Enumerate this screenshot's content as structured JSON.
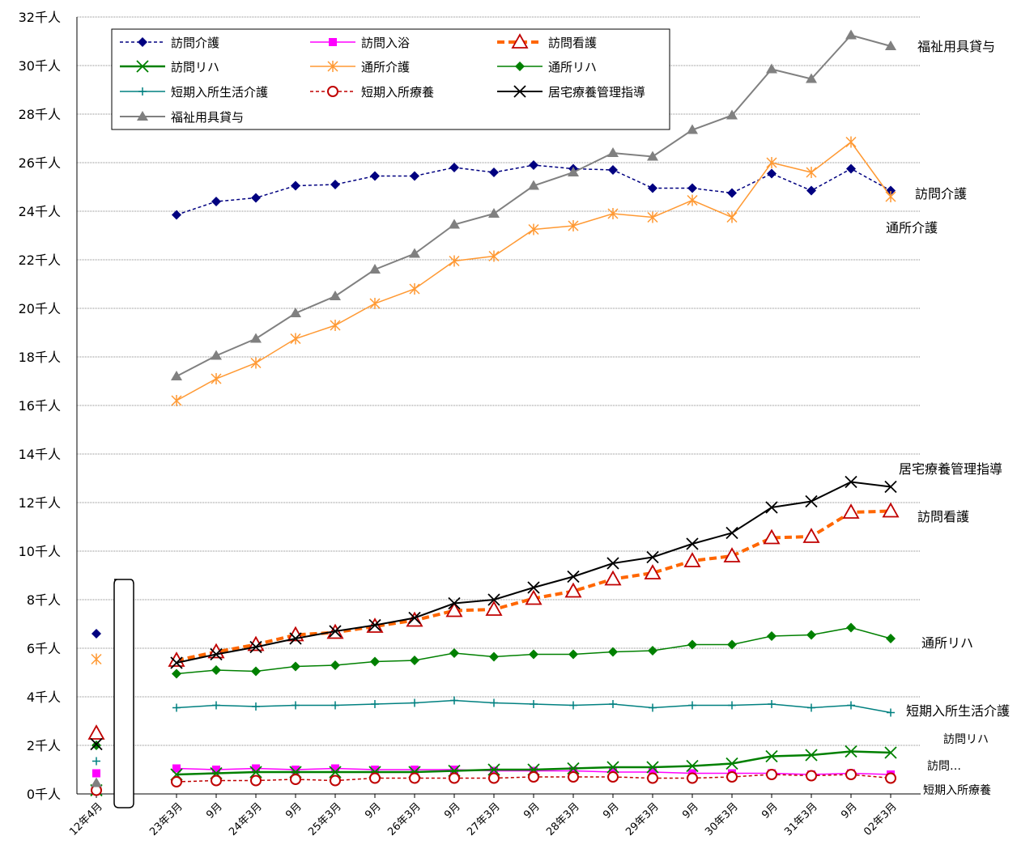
{
  "chart_data": {
    "type": "line",
    "y_unit": "千人",
    "ylim": [
      0,
      32
    ],
    "y_ticks": [
      "0千人",
      "2千人",
      "4千人",
      "6千人",
      "8千人",
      "10千人",
      "12千人",
      "14千人",
      "16千人",
      "18千人",
      "20千人",
      "22千人",
      "24千人",
      "26千人",
      "28千人",
      "30千人",
      "32千人"
    ],
    "grid": true,
    "legend_position": "top-left",
    "baseline_label": "12年4月",
    "categories": [
      "23年3月",
      "9月",
      "24年3月",
      "9月",
      "25年3月",
      "9月",
      "26年3月",
      "9月",
      "27年3月",
      "9月",
      "28年3月",
      "9月",
      "29年3月",
      "9月",
      "30年3月",
      "9月",
      "31年3月",
      "9月",
      "02年3月"
    ],
    "series": [
      {
        "name": "訪問介護",
        "color": "#000080",
        "dash": "4,3",
        "width": 1.5,
        "marker": "diamond",
        "baseline": 6.6,
        "values": [
          23.85,
          24.4,
          24.55,
          25.05,
          25.1,
          25.45,
          25.45,
          25.8,
          25.6,
          25.9,
          25.75,
          25.7,
          24.95,
          24.95,
          24.75,
          25.55,
          24.85,
          25.75,
          24.85
        ],
        "end_label": "訪問介護"
      },
      {
        "name": "訪問入浴",
        "color": "#ff00ff",
        "dash": "",
        "width": 1.5,
        "marker": "square",
        "baseline": 0.85,
        "values": [
          1.05,
          1.0,
          1.05,
          1.0,
          1.05,
          1.0,
          1.0,
          1.0,
          0.95,
          0.95,
          0.95,
          0.9,
          0.9,
          0.85,
          0.85,
          0.85,
          0.8,
          0.85,
          0.8
        ],
        "end_label": "訪問…"
      },
      {
        "name": "訪問看護",
        "color": "#ff6600",
        "dash": "9,5",
        "width": 4,
        "marker": "triangle-open",
        "baseline": 2.5,
        "values": [
          5.5,
          5.85,
          6.15,
          6.55,
          6.65,
          6.9,
          7.15,
          7.55,
          7.6,
          8.05,
          8.35,
          8.85,
          9.1,
          9.6,
          9.8,
          10.55,
          10.6,
          11.6,
          11.65
        ],
        "end_label": "訪問看護"
      },
      {
        "name": "訪問リハ",
        "color": "#008000",
        "dash": "",
        "width": 2.5,
        "marker": "x",
        "baseline": 0.15,
        "values": [
          0.8,
          0.85,
          0.9,
          0.9,
          0.9,
          0.9,
          0.9,
          0.95,
          1.0,
          1.0,
          1.05,
          1.1,
          1.1,
          1.15,
          1.25,
          1.55,
          1.6,
          1.75,
          1.7
        ],
        "end_label": "訪問リハ"
      },
      {
        "name": "通所介護",
        "color": "#ff9933",
        "dash": "",
        "width": 1.5,
        "marker": "asterisk",
        "baseline": 5.55,
        "values": [
          16.2,
          17.1,
          17.75,
          18.75,
          19.3,
          20.2,
          20.8,
          21.95,
          22.15,
          23.25,
          23.4,
          23.9,
          23.75,
          24.45,
          23.75,
          26.0,
          25.6,
          26.85,
          24.6
        ],
        "end_label": "通所介護"
      },
      {
        "name": "通所リハ",
        "color": "#008000",
        "dash": "",
        "width": 1.5,
        "marker": "diamond",
        "baseline": 2.0,
        "values": [
          4.95,
          5.1,
          5.05,
          5.25,
          5.3,
          5.45,
          5.5,
          5.8,
          5.65,
          5.75,
          5.75,
          5.85,
          5.9,
          6.15,
          6.15,
          6.5,
          6.55,
          6.85,
          6.4
        ],
        "end_label": "通所リハ"
      },
      {
        "name": "短期入所生活介護",
        "color": "#008080",
        "dash": "",
        "width": 1.5,
        "marker": "plus",
        "baseline": 1.35,
        "values": [
          3.55,
          3.65,
          3.6,
          3.65,
          3.65,
          3.7,
          3.75,
          3.85,
          3.75,
          3.7,
          3.65,
          3.7,
          3.55,
          3.65,
          3.65,
          3.7,
          3.55,
          3.65,
          3.35
        ],
        "end_label": "短期入所生活介護"
      },
      {
        "name": "短期入所療養",
        "color": "#c00000",
        "dash": "4,3",
        "width": 1.5,
        "marker": "circle-open",
        "baseline": 0.15,
        "values": [
          0.5,
          0.55,
          0.55,
          0.6,
          0.55,
          0.65,
          0.65,
          0.65,
          0.65,
          0.7,
          0.7,
          0.7,
          0.65,
          0.65,
          0.7,
          0.8,
          0.75,
          0.8,
          0.65
        ],
        "end_label": "短期入所療養"
      },
      {
        "name": "居宅療養管理指導",
        "color": "#000000",
        "dash": "",
        "width": 2,
        "marker": "x",
        "baseline": 2.05,
        "values": [
          5.4,
          5.75,
          6.05,
          6.4,
          6.7,
          6.95,
          7.25,
          7.85,
          8.0,
          8.5,
          8.95,
          9.5,
          9.75,
          10.3,
          10.75,
          11.8,
          12.05,
          12.85,
          12.65
        ],
        "end_label": "居宅療養管理指導"
      },
      {
        "name": "福祉用具貸与",
        "color": "#808080",
        "dash": "",
        "width": 2,
        "marker": "triangle",
        "baseline": 0.45,
        "values": [
          17.2,
          18.05,
          18.75,
          19.8,
          20.5,
          21.6,
          22.25,
          23.45,
          23.9,
          25.05,
          25.6,
          26.4,
          26.25,
          27.35,
          27.95,
          29.85,
          29.45,
          31.25,
          30.8
        ],
        "end_label": "福祉用具貸与"
      }
    ]
  }
}
